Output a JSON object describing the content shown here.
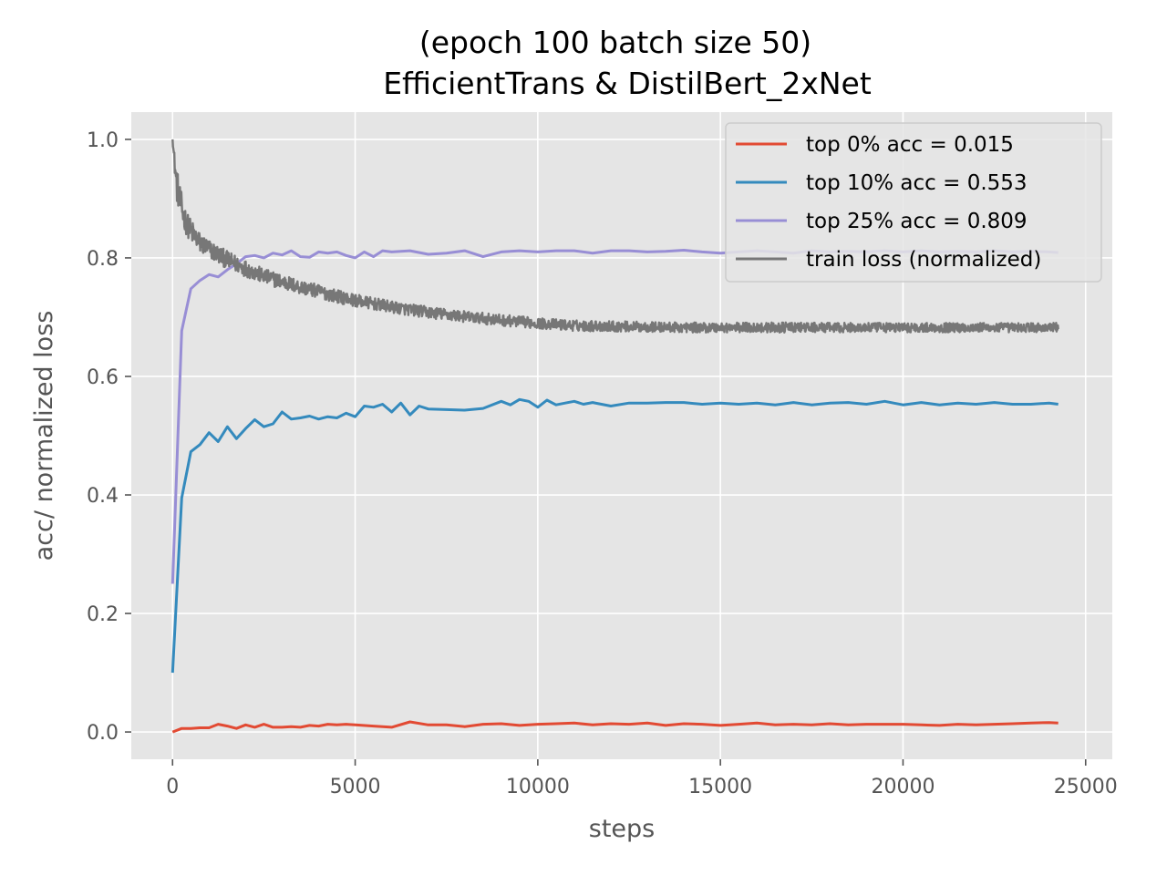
{
  "chart_data": {
    "type": "line",
    "title_line1": "(epoch 100 batch size 50)",
    "title_line2": "EfficientTrans & DistilBert_2xNet",
    "xlabel": "steps",
    "ylabel": "acc/ normalized loss",
    "xlim": [
      -1130,
      25730
    ],
    "ylim": [
      -0.046,
      1.046
    ],
    "x_ticks": [
      0,
      5000,
      10000,
      15000,
      20000,
      25000
    ],
    "x_tick_labels": [
      "0",
      "5000",
      "10000",
      "15000",
      "20000",
      "25000"
    ],
    "y_ticks": [
      0.0,
      0.2,
      0.4,
      0.6,
      0.8,
      1.0
    ],
    "y_tick_labels": [
      "0.0",
      "0.2",
      "0.4",
      "0.6",
      "0.8",
      "1.0"
    ],
    "grid": true,
    "legend_position": "top-right",
    "colors": {
      "background": "#e5e5e5",
      "grid": "#ffffff",
      "series": [
        "#e24a33",
        "#348abd",
        "#988ed5",
        "#777777"
      ]
    },
    "series": [
      {
        "name": "top 0% acc = 0.015",
        "x": [
          0,
          250,
          500,
          750,
          1000,
          1250,
          1500,
          1750,
          2000,
          2250,
          2500,
          2750,
          3000,
          3250,
          3500,
          3750,
          4000,
          4250,
          4500,
          4750,
          5000,
          5500,
          6000,
          6500,
          7000,
          7500,
          8000,
          8500,
          9000,
          9500,
          10000,
          10500,
          11000,
          11500,
          12000,
          12500,
          13000,
          13500,
          14000,
          14500,
          15000,
          15500,
          16000,
          16500,
          17000,
          17500,
          18000,
          18500,
          19000,
          19500,
          20000,
          20500,
          21000,
          21500,
          22000,
          22500,
          23000,
          23500,
          24000,
          24250
        ],
        "y": [
          0.0,
          0.006,
          0.006,
          0.007,
          0.007,
          0.013,
          0.01,
          0.006,
          0.012,
          0.008,
          0.013,
          0.008,
          0.008,
          0.009,
          0.008,
          0.011,
          0.01,
          0.013,
          0.012,
          0.013,
          0.012,
          0.01,
          0.008,
          0.017,
          0.012,
          0.012,
          0.009,
          0.013,
          0.014,
          0.011,
          0.013,
          0.014,
          0.015,
          0.012,
          0.014,
          0.013,
          0.015,
          0.011,
          0.014,
          0.013,
          0.011,
          0.013,
          0.015,
          0.012,
          0.013,
          0.012,
          0.014,
          0.012,
          0.013,
          0.013,
          0.013,
          0.012,
          0.011,
          0.013,
          0.012,
          0.013,
          0.014,
          0.015,
          0.016,
          0.015
        ]
      },
      {
        "name": "top 10% acc = 0.553",
        "x": [
          0,
          250,
          500,
          750,
          1000,
          1250,
          1500,
          1750,
          2000,
          2250,
          2500,
          2750,
          3000,
          3250,
          3500,
          3750,
          4000,
          4250,
          4500,
          4750,
          5000,
          5250,
          5500,
          5750,
          6000,
          6250,
          6500,
          6750,
          7000,
          7500,
          8000,
          8500,
          9000,
          9250,
          9500,
          9750,
          10000,
          10250,
          10500,
          10750,
          11000,
          11250,
          11500,
          12000,
          12500,
          13000,
          13500,
          14000,
          14500,
          15000,
          15500,
          16000,
          16500,
          17000,
          17500,
          18000,
          18500,
          19000,
          19500,
          20000,
          20500,
          21000,
          21500,
          22000,
          22500,
          23000,
          23500,
          24000,
          24250
        ],
        "y": [
          0.1,
          0.395,
          0.473,
          0.485,
          0.505,
          0.49,
          0.515,
          0.495,
          0.512,
          0.527,
          0.515,
          0.52,
          0.54,
          0.528,
          0.53,
          0.533,
          0.528,
          0.532,
          0.53,
          0.538,
          0.532,
          0.55,
          0.548,
          0.553,
          0.54,
          0.555,
          0.535,
          0.55,
          0.545,
          0.544,
          0.543,
          0.546,
          0.558,
          0.552,
          0.561,
          0.558,
          0.548,
          0.56,
          0.552,
          0.555,
          0.558,
          0.553,
          0.556,
          0.55,
          0.555,
          0.555,
          0.556,
          0.556,
          0.553,
          0.555,
          0.553,
          0.555,
          0.552,
          0.556,
          0.552,
          0.555,
          0.556,
          0.553,
          0.558,
          0.552,
          0.556,
          0.552,
          0.555,
          0.553,
          0.556,
          0.553,
          0.553,
          0.555,
          0.553
        ]
      },
      {
        "name": "top 25% acc = 0.809",
        "x": [
          0,
          250,
          500,
          750,
          1000,
          1250,
          1500,
          1750,
          2000,
          2250,
          2500,
          2750,
          3000,
          3250,
          3500,
          3750,
          4000,
          4250,
          4500,
          4750,
          5000,
          5250,
          5500,
          5750,
          6000,
          6500,
          7000,
          7500,
          8000,
          8500,
          9000,
          9500,
          10000,
          10500,
          11000,
          11500,
          12000,
          12500,
          13000,
          13500,
          14000,
          14500,
          15000,
          15500,
          16000,
          16500,
          17000,
          17500,
          18000,
          18500,
          19000,
          19500,
          20000,
          20500,
          21000,
          21500,
          22000,
          22500,
          23000,
          23500,
          24000,
          24250
        ],
        "y": [
          0.25,
          0.677,
          0.748,
          0.762,
          0.772,
          0.768,
          0.78,
          0.79,
          0.802,
          0.804,
          0.8,
          0.808,
          0.805,
          0.812,
          0.802,
          0.801,
          0.81,
          0.808,
          0.81,
          0.804,
          0.8,
          0.81,
          0.802,
          0.812,
          0.81,
          0.812,
          0.806,
          0.808,
          0.812,
          0.802,
          0.81,
          0.812,
          0.81,
          0.812,
          0.812,
          0.808,
          0.812,
          0.812,
          0.81,
          0.811,
          0.813,
          0.81,
          0.808,
          0.81,
          0.812,
          0.81,
          0.808,
          0.812,
          0.81,
          0.811,
          0.81,
          0.812,
          0.81,
          0.812,
          0.81,
          0.811,
          0.81,
          0.812,
          0.81,
          0.811,
          0.81,
          0.809
        ]
      },
      {
        "name": "train loss (normalized)",
        "x": [
          0,
          100,
          200,
          300,
          400,
          500,
          750,
          1000,
          1500,
          2000,
          2500,
          3000,
          3500,
          4000,
          4500,
          5000,
          6000,
          7000,
          8000,
          9000,
          10000,
          11000,
          12000,
          13000,
          14000,
          15000,
          16000,
          17000,
          18000,
          19000,
          20000,
          21000,
          22000,
          23000,
          24000,
          24250
        ],
        "y": [
          1.0,
          0.92,
          0.89,
          0.865,
          0.85,
          0.84,
          0.82,
          0.81,
          0.792,
          0.778,
          0.765,
          0.756,
          0.747,
          0.74,
          0.732,
          0.725,
          0.714,
          0.705,
          0.698,
          0.692,
          0.687,
          0.683,
          0.682,
          0.681,
          0.68,
          0.68,
          0.68,
          0.68,
          0.68,
          0.68,
          0.68,
          0.68,
          0.68,
          0.68,
          0.68,
          0.68
        ],
        "noise_amplitude": [
          0.0,
          0.06,
          0.05,
          0.045,
          0.04,
          0.04,
          0.035,
          0.032,
          0.03,
          0.028,
          0.026,
          0.025,
          0.024,
          0.023,
          0.022,
          0.021,
          0.02,
          0.02,
          0.019,
          0.019,
          0.018,
          0.018,
          0.018,
          0.017,
          0.017,
          0.017,
          0.017,
          0.017,
          0.016,
          0.016,
          0.016,
          0.016,
          0.016,
          0.016,
          0.016,
          0.016
        ]
      }
    ]
  }
}
